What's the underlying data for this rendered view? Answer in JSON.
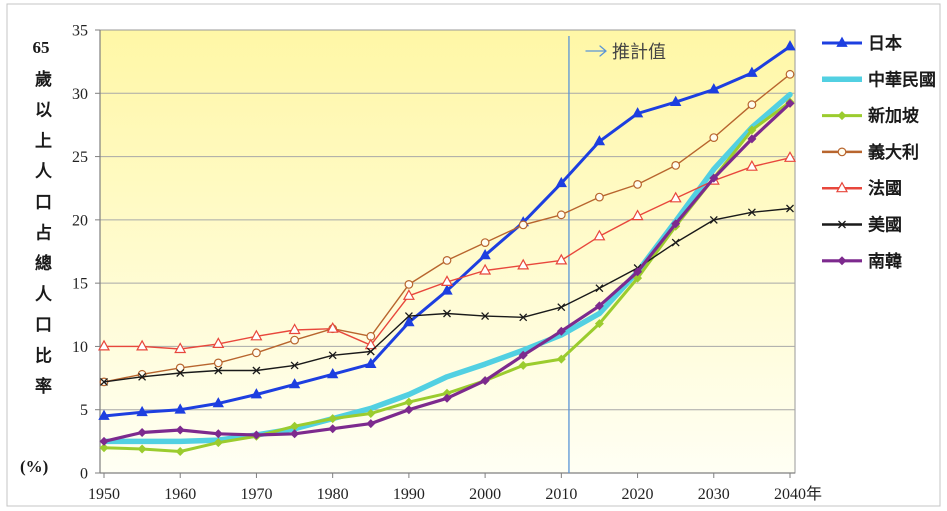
{
  "chart_data": {
    "type": "line",
    "title": "",
    "ylabel_number": "65",
    "ylabel": "歲以上人口占總人口比率",
    "yunit": "(%)",
    "xlim": [
      1950,
      2040
    ],
    "ylim": [
      0,
      35
    ],
    "y_ticks": [
      0,
      5,
      10,
      15,
      20,
      25,
      30,
      35
    ],
    "x_ticks": [
      {
        "value": 1950,
        "label": "1950"
      },
      {
        "value": 1960,
        "label": "1960"
      },
      {
        "value": 1970,
        "label": "1970"
      },
      {
        "value": 1980,
        "label": "1980"
      },
      {
        "value": 1990,
        "label": "1990"
      },
      {
        "value": 2000,
        "label": "2000"
      },
      {
        "value": 2010,
        "label": "2010"
      },
      {
        "value": 2020,
        "label": "2020"
      },
      {
        "value": 2030,
        "label": "2030"
      },
      {
        "value": 2040,
        "label": "2040年"
      }
    ],
    "grid": "horizontal",
    "legend": "right",
    "plot_bg": [
      "#fff7a6",
      "#fffff4"
    ],
    "x": [
      1950,
      1955,
      1960,
      1965,
      1970,
      1975,
      1980,
      1985,
      1990,
      1995,
      2000,
      2005,
      2010,
      2015,
      2020,
      2025,
      2030,
      2035,
      2040
    ],
    "series": [
      {
        "name": "日本",
        "color": "#1d3fe0",
        "marker": "triangle",
        "values": [
          4.5,
          4.8,
          5.0,
          5.5,
          6.2,
          7.0,
          7.8,
          8.6,
          11.9,
          14.4,
          17.2,
          19.8,
          22.9,
          26.2,
          28.4,
          29.3,
          30.3,
          31.6,
          33.7
        ]
      },
      {
        "name": "中華民國",
        "color": "#52d0e2",
        "marker": "none",
        "values": [
          2.5,
          2.5,
          2.5,
          2.6,
          3.0,
          3.5,
          4.3,
          5.1,
          6.2,
          7.6,
          8.6,
          9.7,
          10.9,
          12.6,
          15.9,
          19.9,
          24.0,
          27.3,
          29.9
        ]
      },
      {
        "name": "新加坡",
        "color": "#9bcc2e",
        "marker": "diamond",
        "values": [
          2.0,
          1.9,
          1.7,
          2.4,
          2.9,
          3.7,
          4.3,
          4.7,
          5.6,
          6.3,
          7.3,
          8.5,
          9.0,
          11.8,
          15.4,
          19.5,
          23.3,
          27.1,
          29.3
        ]
      },
      {
        "name": "義大利",
        "color": "#b8652e",
        "marker": "circle-open",
        "values": [
          7.2,
          7.8,
          8.3,
          8.7,
          9.5,
          10.5,
          11.4,
          10.8,
          14.9,
          16.8,
          18.2,
          19.6,
          20.4,
          21.8,
          22.8,
          24.3,
          26.5,
          29.1,
          31.5
        ]
      },
      {
        "name": "法國",
        "color": "#e8473c",
        "marker": "triangle-open",
        "values": [
          10.0,
          10.0,
          9.8,
          10.2,
          10.8,
          11.3,
          11.4,
          10.1,
          14.0,
          15.1,
          16.0,
          16.4,
          16.8,
          18.7,
          20.3,
          21.7,
          23.1,
          24.2,
          24.9
        ]
      },
      {
        "name": "美國",
        "color": "#1a1a1a",
        "marker": "x",
        "values": [
          7.2,
          7.6,
          7.9,
          8.1,
          8.1,
          8.5,
          9.3,
          9.6,
          12.4,
          12.6,
          12.4,
          12.3,
          13.1,
          14.6,
          16.2,
          18.2,
          20.0,
          20.6,
          20.9
        ]
      },
      {
        "name": "南韓",
        "color": "#7d2a8e",
        "marker": "diamond",
        "values": [
          2.5,
          3.2,
          3.4,
          3.1,
          3.0,
          3.1,
          3.5,
          3.9,
          5.0,
          5.9,
          7.3,
          9.3,
          11.2,
          13.2,
          15.9,
          19.7,
          23.3,
          26.4,
          29.2
        ]
      }
    ],
    "annotations": [
      {
        "type": "vline",
        "x": 2011,
        "label": "推計值",
        "color": "#5b95d6",
        "icon": "arrow-right-icon"
      }
    ]
  }
}
